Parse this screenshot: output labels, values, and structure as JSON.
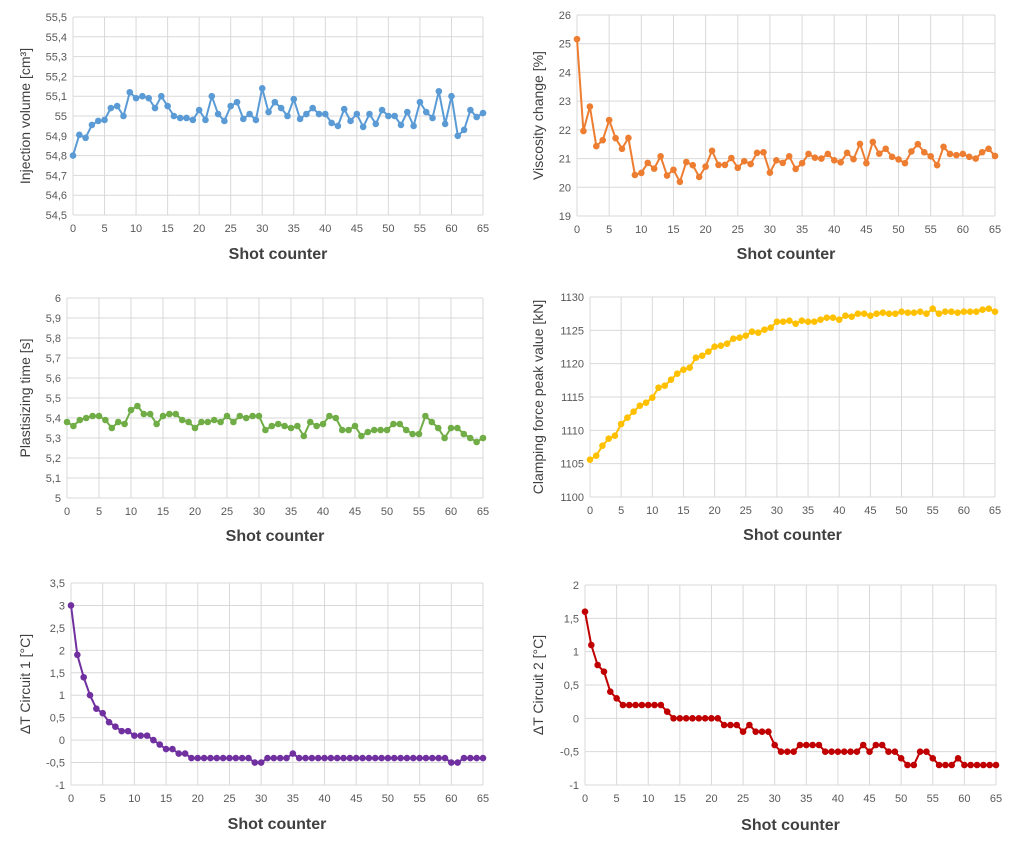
{
  "chart_data": [
    {
      "type": "line",
      "xlabel": "Shot counter",
      "ylabel": "Injection volume [cm³]",
      "color": "#5b9bd5",
      "xlim": [
        0,
        65
      ],
      "ylim": [
        54.5,
        55.5
      ],
      "x_ticks": [
        "0",
        "5",
        "10",
        "15",
        "20",
        "25",
        "30",
        "35",
        "40",
        "45",
        "50",
        "55",
        "60",
        "65"
      ],
      "y_ticks": [
        "54,5",
        "54,6",
        "54,7",
        "54,8",
        "54,9",
        "55",
        "55,1",
        "55,2",
        "55,3",
        "55,4",
        "55,5"
      ],
      "grid": true,
      "values": [
        54.8,
        54.905,
        54.89,
        54.955,
        54.975,
        54.98,
        55.04,
        55.05,
        55.0,
        55.12,
        55.09,
        55.1,
        55.09,
        55.04,
        55.1,
        55.05,
        55.0,
        54.99,
        54.99,
        54.98,
        55.03,
        54.98,
        55.1,
        55.01,
        54.975,
        55.05,
        55.07,
        54.985,
        55.01,
        54.98,
        55.14,
        55.02,
        55.07,
        55.04,
        55.0,
        55.085,
        54.985,
        55.01,
        55.04,
        55.01,
        55.01,
        54.965,
        54.95,
        55.035,
        54.975,
        55.01,
        54.945,
        55.01,
        54.96,
        55.03,
        55.0,
        55.0,
        54.955,
        55.02,
        54.95,
        55.07,
        55.02,
        54.99,
        55.125,
        54.96,
        55.1,
        54.9,
        54.93,
        55.03,
        54.995,
        55.015
      ]
    },
    {
      "type": "line",
      "xlabel": "Shot counter",
      "ylabel": "Viscosity change [%]",
      "color": "#ed7d31",
      "xlim": [
        0,
        65
      ],
      "ylim": [
        19,
        26
      ],
      "x_ticks": [
        "0",
        "5",
        "10",
        "15",
        "20",
        "25",
        "30",
        "35",
        "40",
        "45",
        "50",
        "55",
        "60",
        "65"
      ],
      "y_ticks": [
        "19",
        "20",
        "21",
        "22",
        "23",
        "24",
        "25",
        "26"
      ],
      "grid": true,
      "values": [
        25.16,
        21.96,
        22.81,
        21.43,
        21.64,
        22.34,
        21.71,
        21.34,
        21.72,
        20.43,
        20.5,
        20.85,
        20.65,
        21.08,
        20.41,
        20.61,
        20.19,
        20.88,
        20.77,
        20.36,
        20.72,
        21.27,
        20.78,
        20.78,
        21.02,
        20.68,
        20.91,
        20.81,
        21.2,
        21.22,
        20.51,
        20.94,
        20.85,
        21.08,
        20.64,
        20.84,
        21.16,
        21.03,
        21.0,
        21.16,
        20.94,
        20.87,
        21.2,
        20.98,
        21.51,
        20.84,
        21.58,
        21.17,
        21.34,
        21.06,
        20.97,
        20.84,
        21.25,
        21.5,
        21.22,
        21.08,
        20.77,
        21.41,
        21.16,
        21.12,
        21.16,
        21.06,
        21.0,
        21.22,
        21.34,
        21.09
      ]
    },
    {
      "type": "line",
      "xlabel": "Shot counter",
      "ylabel": "Plastisizing time [s]",
      "color": "#70ad47",
      "xlim": [
        0,
        65
      ],
      "ylim": [
        5,
        6
      ],
      "x_ticks": [
        "0",
        "5",
        "10",
        "15",
        "20",
        "25",
        "30",
        "35",
        "40",
        "45",
        "50",
        "55",
        "60",
        "65"
      ],
      "y_ticks": [
        "5",
        "5,1",
        "5,2",
        "5,3",
        "5,4",
        "5,5",
        "5,6",
        "5,7",
        "5,8",
        "5,9",
        "6"
      ],
      "grid": true,
      "values": [
        5.38,
        5.36,
        5.39,
        5.4,
        5.41,
        5.41,
        5.39,
        5.35,
        5.38,
        5.37,
        5.44,
        5.46,
        5.42,
        5.42,
        5.37,
        5.41,
        5.42,
        5.42,
        5.39,
        5.38,
        5.35,
        5.38,
        5.38,
        5.39,
        5.38,
        5.41,
        5.38,
        5.41,
        5.4,
        5.41,
        5.41,
        5.34,
        5.36,
        5.37,
        5.36,
        5.35,
        5.36,
        5.31,
        5.38,
        5.36,
        5.37,
        5.41,
        5.4,
        5.34,
        5.34,
        5.36,
        5.31,
        5.33,
        5.34,
        5.34,
        5.34,
        5.37,
        5.37,
        5.34,
        5.32,
        5.32,
        5.41,
        5.38,
        5.35,
        5.3,
        5.35,
        5.35,
        5.32,
        5.3,
        5.28,
        5.3
      ]
    },
    {
      "type": "line",
      "xlabel": "Shot counter",
      "ylabel": "Clamping force peak value [kN]",
      "color": "#ffc000",
      "xlim": [
        0,
        65
      ],
      "ylim": [
        1100,
        1130
      ],
      "x_ticks": [
        "0",
        "5",
        "10",
        "15",
        "20",
        "25",
        "30",
        "35",
        "40",
        "45",
        "50",
        "55",
        "60",
        "65"
      ],
      "y_ticks": [
        "1100",
        "1105",
        "1110",
        "1115",
        "1120",
        "1125",
        "1130"
      ],
      "grid": true,
      "values": [
        1105.6,
        1106.2,
        1107.7,
        1108.75,
        1109.2,
        1110.95,
        1111.9,
        1112.8,
        1113.7,
        1114.15,
        1114.9,
        1116.4,
        1116.7,
        1117.6,
        1118.5,
        1119.1,
        1119.4,
        1120.9,
        1121.2,
        1121.8,
        1122.55,
        1122.7,
        1123.0,
        1123.75,
        1123.9,
        1124.2,
        1124.8,
        1124.65,
        1125.1,
        1125.4,
        1126.3,
        1126.3,
        1126.45,
        1126.0,
        1126.45,
        1126.3,
        1126.3,
        1126.6,
        1126.9,
        1126.9,
        1126.6,
        1127.2,
        1127.05,
        1127.5,
        1127.5,
        1127.2,
        1127.5,
        1127.65,
        1127.5,
        1127.5,
        1127.8,
        1127.65,
        1127.65,
        1127.8,
        1127.5,
        1128.25,
        1127.5,
        1127.8,
        1127.8,
        1127.65,
        1127.8,
        1127.8,
        1127.8,
        1128.1,
        1128.25,
        1127.8
      ]
    },
    {
      "type": "line",
      "xlabel": "Shot counter",
      "ylabel": "ΔT Circuit 1 [°C]",
      "color": "#7030a0",
      "xlim": [
        0,
        65
      ],
      "ylim": [
        -1,
        3.5
      ],
      "x_ticks": [
        "0",
        "5",
        "10",
        "15",
        "20",
        "25",
        "30",
        "35",
        "40",
        "45",
        "50",
        "55",
        "60",
        "65"
      ],
      "y_ticks": [
        "-1",
        "-0,5",
        "0",
        "0,5",
        "1",
        "1,5",
        "2",
        "2,5",
        "3",
        "3,5"
      ],
      "grid": true,
      "values": [
        3.0,
        1.9,
        1.4,
        1.0,
        0.7,
        0.6,
        0.4,
        0.3,
        0.2,
        0.2,
        0.1,
        0.1,
        0.1,
        0.0,
        -0.1,
        -0.2,
        -0.2,
        -0.3,
        -0.3,
        -0.4,
        -0.4,
        -0.4,
        -0.4,
        -0.4,
        -0.4,
        -0.4,
        -0.4,
        -0.4,
        -0.4,
        -0.5,
        -0.5,
        -0.4,
        -0.4,
        -0.4,
        -0.4,
        -0.3,
        -0.4,
        -0.4,
        -0.4,
        -0.4,
        -0.4,
        -0.4,
        -0.4,
        -0.4,
        -0.4,
        -0.4,
        -0.4,
        -0.4,
        -0.4,
        -0.4,
        -0.4,
        -0.4,
        -0.4,
        -0.4,
        -0.4,
        -0.4,
        -0.4,
        -0.4,
        -0.4,
        -0.4,
        -0.5,
        -0.5,
        -0.4,
        -0.4,
        -0.4,
        -0.4
      ]
    },
    {
      "type": "line",
      "xlabel": "Shot counter",
      "ylabel": "ΔT Circuit 2 [°C]",
      "color": "#c00000",
      "xlim": [
        0,
        65
      ],
      "ylim": [
        -1,
        2
      ],
      "x_ticks": [
        "0",
        "5",
        "10",
        "15",
        "20",
        "25",
        "30",
        "35",
        "40",
        "45",
        "50",
        "55",
        "60",
        "65"
      ],
      "y_ticks": [
        "-1",
        "-0,5",
        "0",
        "0,5",
        "1",
        "1,5",
        "2"
      ],
      "grid": true,
      "values": [
        1.6,
        1.1,
        0.8,
        0.7,
        0.4,
        0.3,
        0.2,
        0.2,
        0.2,
        0.2,
        0.2,
        0.2,
        0.2,
        0.1,
        0.0,
        0.0,
        0.0,
        0.0,
        0.0,
        0.0,
        0.0,
        0.0,
        -0.1,
        -0.1,
        -0.1,
        -0.2,
        -0.1,
        -0.2,
        -0.2,
        -0.2,
        -0.4,
        -0.5,
        -0.5,
        -0.5,
        -0.4,
        -0.4,
        -0.4,
        -0.4,
        -0.5,
        -0.5,
        -0.5,
        -0.5,
        -0.5,
        -0.5,
        -0.4,
        -0.5,
        -0.4,
        -0.4,
        -0.5,
        -0.5,
        -0.6,
        -0.7,
        -0.7,
        -0.5,
        -0.5,
        -0.6,
        -0.7,
        -0.7,
        -0.7,
        -0.6,
        -0.7,
        -0.7,
        -0.7,
        -0.7,
        -0.7,
        -0.7
      ]
    }
  ]
}
